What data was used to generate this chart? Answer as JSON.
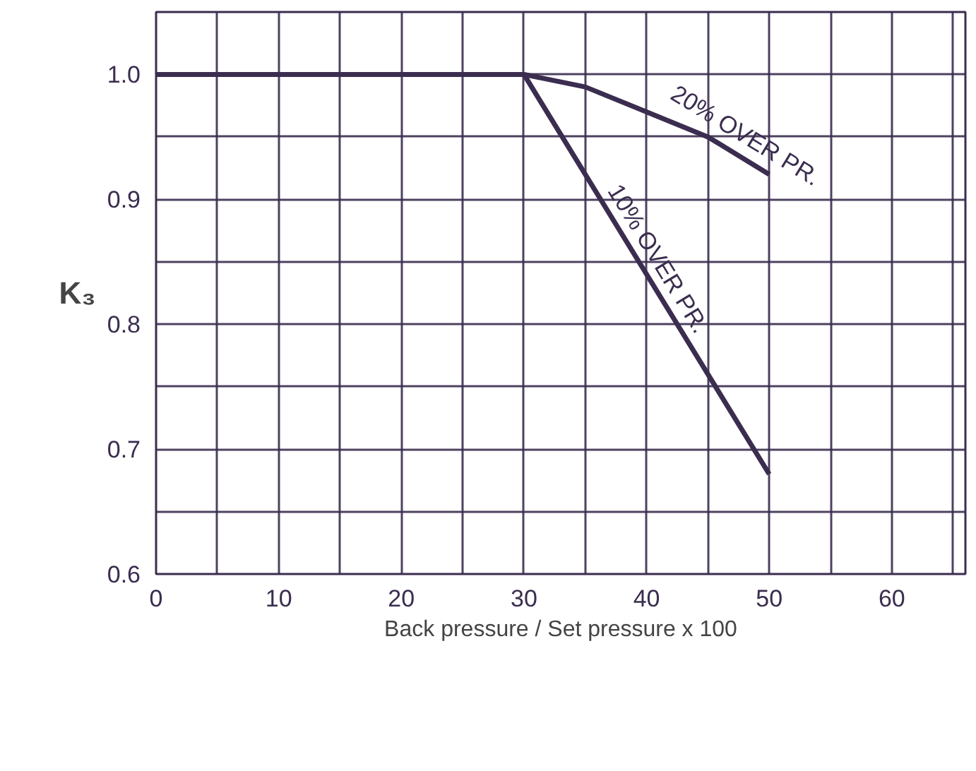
{
  "chart_data": {
    "type": "line",
    "xlabel": "Back pressure / Set pressure x 100",
    "ylabel": "K₃",
    "xlim": [
      0,
      66
    ],
    "ylim": [
      0.6,
      1.05
    ],
    "xticks": [
      0,
      {
        "value": 5,
        "label": null
      },
      10,
      {
        "value": 15,
        "label": null
      },
      20,
      {
        "value": 25,
        "label": null
      },
      30,
      {
        "value": 35,
        "label": null
      },
      40,
      {
        "value": 45,
        "label": null
      },
      50,
      {
        "value": 55,
        "label": null
      },
      60,
      {
        "value": 65,
        "label": null
      }
    ],
    "yticks": [
      0.6,
      {
        "value": 0.65,
        "label": null
      },
      0.7,
      {
        "value": 0.75,
        "label": null
      },
      0.8,
      {
        "value": 0.85,
        "label": null
      },
      0.9,
      {
        "value": 0.95,
        "label": null
      },
      {
        "value": 1.0,
        "label": "1.0"
      }
    ],
    "grid": true,
    "marker": "none",
    "line_style": "solid",
    "series": [
      {
        "name": "20% OVER PR.",
        "color": "#3b2d4f",
        "x": [
          0,
          30,
          35,
          40,
          45,
          50
        ],
        "values": [
          1.0,
          1.0,
          0.99,
          0.97,
          0.95,
          0.92
        ]
      },
      {
        "name": "10% OVER PR.",
        "color": "#3b2d4f",
        "x": [
          30,
          50
        ],
        "values": [
          1.0,
          0.68
        ]
      }
    ]
  }
}
